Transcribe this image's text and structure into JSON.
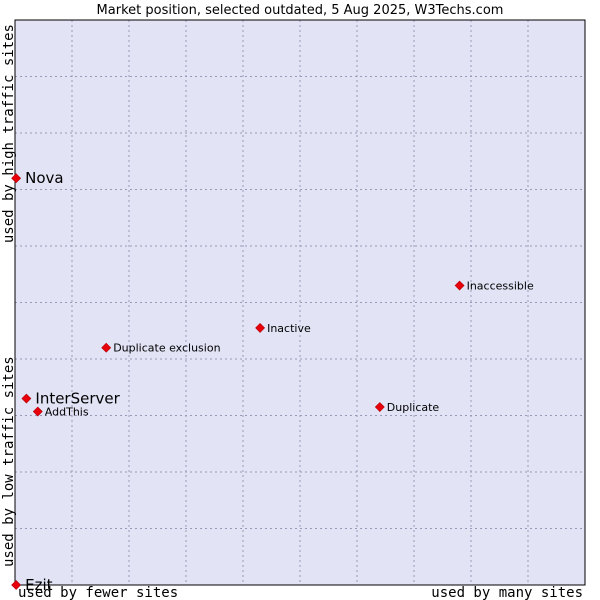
{
  "chart_data": {
    "type": "scatter",
    "title": "Market position, selected outdated, 5 Aug 2025, W3Techs.com",
    "xlabel_low": "used by fewer sites",
    "xlabel_high": "used by many sites",
    "ylabel_low": "used by low traffic sites",
    "ylabel_high": "used by high traffic sites",
    "xlim": [
      0,
      10
    ],
    "ylim": [
      0,
      10
    ],
    "grid": true,
    "colors": {
      "plot_background": "#e2e4f6",
      "marker": "#e8000a",
      "frame": "#000000"
    },
    "points": [
      {
        "label": "Nova",
        "x": 0.02,
        "y": 7.2,
        "emphasis": true
      },
      {
        "label": "InterServer",
        "x": 0.2,
        "y": 3.3,
        "emphasis": true
      },
      {
        "label": "Ezit",
        "x": 0.02,
        "y": 0.0,
        "emphasis": true
      },
      {
        "label": "AddThis",
        "x": 0.4,
        "y": 3.07,
        "emphasis": false
      },
      {
        "label": "Duplicate exclusion",
        "x": 1.6,
        "y": 4.2,
        "emphasis": false
      },
      {
        "label": "Inactive",
        "x": 4.3,
        "y": 4.55,
        "emphasis": false
      },
      {
        "label": "Inaccessible",
        "x": 7.8,
        "y": 5.3,
        "emphasis": false
      },
      {
        "label": "Duplicate",
        "x": 6.4,
        "y": 3.15,
        "emphasis": false
      }
    ]
  }
}
